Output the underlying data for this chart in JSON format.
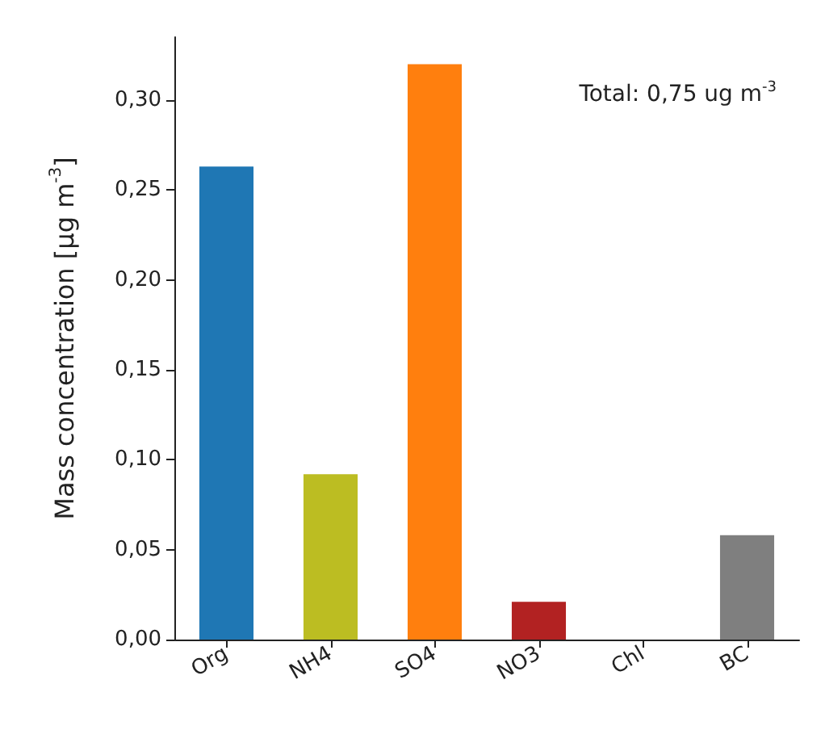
{
  "chart_data": {
    "type": "bar",
    "categories": [
      "Org",
      "NH4",
      "SO4",
      "NO3",
      "Chl",
      "BC"
    ],
    "values": [
      0.263,
      0.092,
      0.32,
      0.021,
      0,
      0.058
    ],
    "colors": [
      "#1f77b4",
      "#bcbd22",
      "#ff7f0e",
      "#b22222",
      null,
      "#7f7f7f"
    ],
    "ylabel": "Mass concentration [μg m$^{-3}$]",
    "ylim": [
      0,
      0.335
    ],
    "yticks": [
      {
        "value": 0,
        "label": "0,00"
      },
      {
        "value": 0.05,
        "label": "0,05"
      },
      {
        "value": 0.1,
        "label": "0,10"
      },
      {
        "value": 0.15,
        "label": "0,15"
      },
      {
        "value": 0.2,
        "label": "0,20"
      },
      {
        "value": 0.25,
        "label": "0,25"
      },
      {
        "value": 0.3,
        "label": "0,30"
      }
    ],
    "annotations": [
      "Total: 0,75 ug m$^{-3}$"
    ]
  }
}
